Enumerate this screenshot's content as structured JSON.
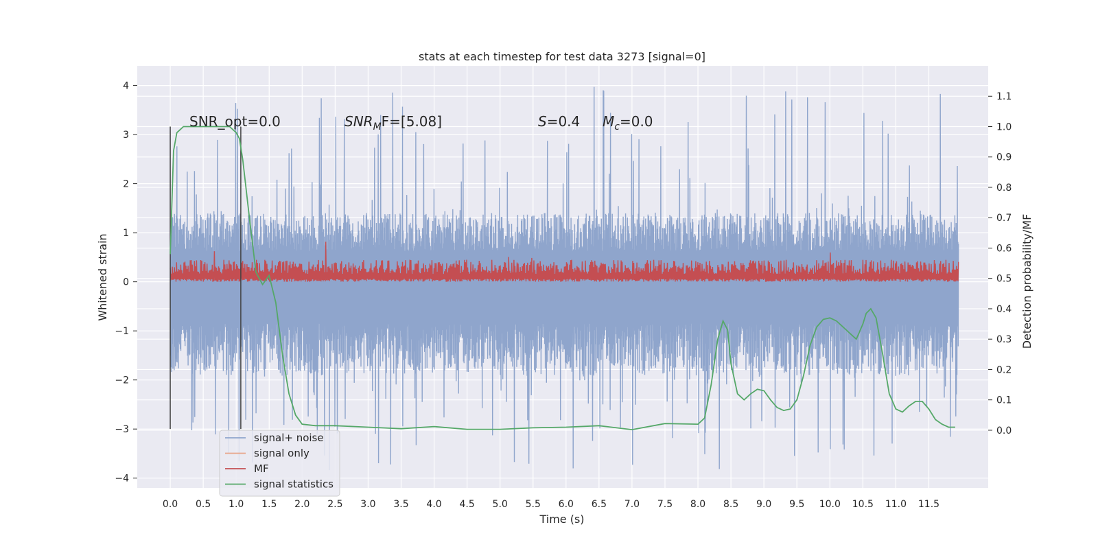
{
  "chart_data": {
    "type": "line",
    "title": "stats at each timestep for test data 3273 [signal=0]",
    "xlabel": "Time (s)",
    "ylabel": "Whitened strain",
    "ylabel_right": "Detection probability/MF",
    "xlim": [
      -0.5,
      12.4
    ],
    "ylim": [
      -4.2,
      4.4
    ],
    "ylim_right": [
      -0.19,
      1.2
    ],
    "x_ticks": [
      "0.0",
      "0.5",
      "1.0",
      "1.5",
      "2.0",
      "2.5",
      "3.0",
      "3.5",
      "4.0",
      "4.5",
      "5.0",
      "5.5",
      "6.0",
      "6.5",
      "7.0",
      "7.5",
      "8.0",
      "8.5",
      "9.0",
      "9.5",
      "10.0",
      "10.5",
      "11.0",
      "11.5"
    ],
    "y_ticks": [
      "4",
      "3",
      "2",
      "1",
      "0",
      "−1",
      "−2",
      "−3",
      "−4"
    ],
    "y_ticks_right": [
      "1.1",
      "1.0",
      "0.9",
      "0.8",
      "0.7",
      "0.6",
      "0.5",
      "0.4",
      "0.3",
      "0.2",
      "0.1",
      "0.0"
    ],
    "grid": true,
    "legend_position": "lower-left",
    "annotations": {
      "snr_opt": "SNR_opt=0.0",
      "snr_mf_main": "SNR",
      "snr_mf_sub": "M",
      "snr_mf_rest": "F=[5.08]",
      "s_sym": "S",
      "s_val": "=0.4",
      "mc_sym": "M",
      "mc_sub": "c",
      "mc_val": "=0.0"
    },
    "markers_x": [
      0.0,
      1.07
    ],
    "series": [
      {
        "name": "signal+ noise",
        "color": "#8fa5cc",
        "axis": "left",
        "x_range": [
          0.0,
          11.95
        ],
        "envelope": {
          "typical_low": -1.9,
          "typical_high": 1.4,
          "spike_max": 4.1,
          "spike_min": -3.85
        }
      },
      {
        "name": "signal only",
        "color": "#e8a68b",
        "axis": "left",
        "values": []
      },
      {
        "name": "MF",
        "color": "#c44e52",
        "axis": "left",
        "x_range": [
          0.0,
          11.95
        ],
        "envelope": {
          "base": 0.0,
          "typical_high": 0.45,
          "spike_max": 0.82
        }
      },
      {
        "name": "signal statistics",
        "color": "#55a868",
        "axis": "right",
        "x": [
          0.0,
          0.05,
          0.1,
          0.15,
          0.2,
          0.3,
          0.5,
          0.7,
          0.9,
          1.0,
          1.05,
          1.1,
          1.2,
          1.3,
          1.4,
          1.5,
          1.6,
          1.7,
          1.8,
          1.9,
          2.0,
          2.2,
          2.5,
          2.8,
          3.0,
          3.2,
          3.5,
          4.0,
          4.5,
          5.0,
          5.5,
          6.0,
          6.5,
          7.0,
          7.5,
          8.0,
          8.1,
          8.2,
          8.3,
          8.38,
          8.45,
          8.5,
          8.6,
          8.7,
          8.8,
          8.9,
          9.0,
          9.1,
          9.2,
          9.3,
          9.4,
          9.5,
          9.6,
          9.7,
          9.8,
          9.9,
          10.0,
          10.1,
          10.2,
          10.3,
          10.4,
          10.5,
          10.55,
          10.62,
          10.7,
          10.8,
          10.9,
          11.0,
          11.1,
          11.2,
          11.3,
          11.4,
          11.5,
          11.6,
          11.7,
          11.8,
          11.9
        ],
        "values": [
          0.58,
          0.92,
          0.98,
          0.99,
          1.0,
          1.0,
          1.0,
          1.0,
          1.0,
          0.98,
          0.96,
          0.89,
          0.7,
          0.52,
          0.48,
          0.51,
          0.42,
          0.25,
          0.12,
          0.05,
          0.02,
          0.015,
          0.015,
          0.012,
          0.01,
          0.008,
          0.005,
          0.012,
          0.003,
          0.003,
          0.008,
          0.01,
          0.015,
          0.002,
          0.022,
          0.02,
          0.04,
          0.15,
          0.3,
          0.36,
          0.33,
          0.22,
          0.12,
          0.1,
          0.12,
          0.135,
          0.13,
          0.1,
          0.075,
          0.065,
          0.07,
          0.1,
          0.18,
          0.28,
          0.34,
          0.365,
          0.37,
          0.36,
          0.34,
          0.32,
          0.3,
          0.35,
          0.385,
          0.4,
          0.37,
          0.25,
          0.12,
          0.07,
          0.06,
          0.08,
          0.095,
          0.095,
          0.07,
          0.035,
          0.02,
          0.01,
          0.01
        ]
      }
    ]
  }
}
